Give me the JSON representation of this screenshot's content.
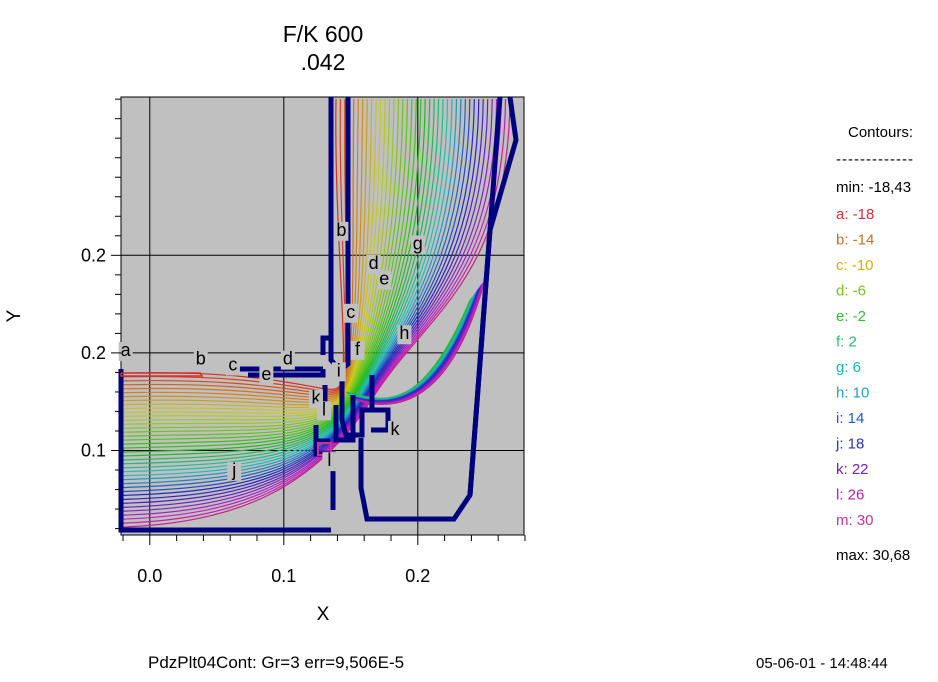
{
  "title_line1": "F/K 600",
  "title_line2": ".042",
  "chart_data": {
    "type": "contour",
    "xlabel": "X",
    "ylabel": "Y",
    "xlim": [
      -0.02,
      0.28
    ],
    "ylim": [
      0.055,
      0.28
    ],
    "x_ticks": [
      0.0,
      0.1,
      0.2
    ],
    "x_tick_labels": [
      "0.0",
      "0.1",
      "0.2"
    ],
    "y_ticks": [
      0.1,
      0.15,
      0.2
    ],
    "y_tick_labels": [
      "0.1",
      "0.2",
      "0.2"
    ],
    "grid": true,
    "legend_placement": "right",
    "contour_levels": [
      {
        "label": "a",
        "value": -18,
        "color": "#d03030"
      },
      {
        "label": "b",
        "value": -14,
        "color": "#c87028"
      },
      {
        "label": "c",
        "value": -10,
        "color": "#c8b400"
      },
      {
        "label": "d",
        "value": -6,
        "color": "#78c020"
      },
      {
        "label": "e",
        "value": -2,
        "color": "#30c030"
      },
      {
        "label": "f",
        "value": 2,
        "color": "#20c070"
      },
      {
        "label": "g",
        "value": 6,
        "color": "#10b8a8"
      },
      {
        "label": "h",
        "value": 10,
        "color": "#20a0d0"
      },
      {
        "label": "i",
        "value": 14,
        "color": "#2058d0"
      },
      {
        "label": "j",
        "value": 18,
        "color": "#3030b0"
      },
      {
        "label": "k",
        "value": 22,
        "color": "#7020b0"
      },
      {
        "label": "l",
        "value": 26,
        "color": "#b020a8"
      },
      {
        "label": "m",
        "value": 30,
        "color": "#d03090"
      }
    ],
    "line_labels": [
      {
        "text": "a",
        "x": -0.018,
        "y": 0.1484
      },
      {
        "text": "b",
        "x": 0.038,
        "y": 0.144
      },
      {
        "text": "c",
        "x": 0.062,
        "y": 0.141
      },
      {
        "text": "d",
        "x": 0.103,
        "y": 0.144
      },
      {
        "text": "e",
        "x": 0.087,
        "y": 0.136
      },
      {
        "text": "b",
        "x": 0.143,
        "y": 0.21
      },
      {
        "text": "g",
        "x": 0.2,
        "y": 0.203
      },
      {
        "text": "d",
        "x": 0.167,
        "y": 0.193
      },
      {
        "text": "e",
        "x": 0.175,
        "y": 0.185
      },
      {
        "text": "c",
        "x": 0.15,
        "y": 0.168
      },
      {
        "text": "h",
        "x": 0.19,
        "y": 0.157
      },
      {
        "text": "f",
        "x": 0.155,
        "y": 0.149
      },
      {
        "text": "i",
        "x": 0.141,
        "y": 0.138
      },
      {
        "text": "k",
        "x": 0.124,
        "y": 0.124
      },
      {
        "text": "l",
        "x": 0.13,
        "y": 0.118
      },
      {
        "text": "k",
        "x": 0.183,
        "y": 0.108
      },
      {
        "text": "j",
        "x": 0.063,
        "y": 0.087
      },
      {
        "text": "l",
        "x": 0.134,
        "y": 0.092
      }
    ]
  },
  "legend": {
    "heading": "Contours:",
    "separator": "-------------",
    "min_label": "min: -18,43",
    "entries": [
      {
        "text": "a: -18",
        "color": "#d03030"
      },
      {
        "text": "b: -14",
        "color": "#c87028"
      },
      {
        "text": "c: -10",
        "color": "#c8b400"
      },
      {
        "text": "d: -6",
        "color": "#78c020"
      },
      {
        "text": "e: -2",
        "color": "#30c030"
      },
      {
        "text": "f: 2",
        "color": "#20c070"
      },
      {
        "text": "g: 6",
        "color": "#10b8a8"
      },
      {
        "text": "h: 10",
        "color": "#20a0d0"
      },
      {
        "text": "i: 14",
        "color": "#2058d0"
      },
      {
        "text": "j: 18",
        "color": "#3030b0"
      },
      {
        "text": "k: 22",
        "color": "#7020b0"
      },
      {
        "text": "l: 26",
        "color": "#b020a8"
      },
      {
        "text": "m: 30",
        "color": "#d03090"
      }
    ],
    "max_label": "max: 30,68"
  },
  "footer": {
    "status": "PdzPlt04Cont: Gr=3   err=9,506E-5",
    "timestamp": "05-06-01 - 14:48:44"
  },
  "colors": {
    "plot_background": "#c0c0c0",
    "structure": "#00007f"
  }
}
